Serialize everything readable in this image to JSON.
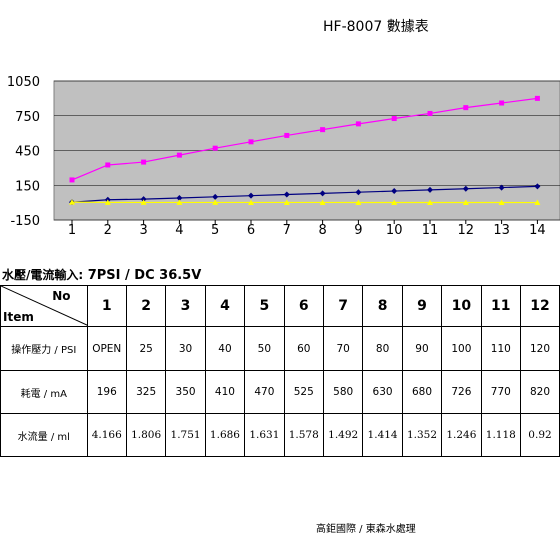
{
  "title": "HF-8007 數據表",
  "chart_data": {
    "type": "line",
    "categories": [
      "1",
      "2",
      "3",
      "4",
      "5",
      "6",
      "7",
      "8",
      "9",
      "10",
      "11",
      "12",
      "13",
      "14"
    ],
    "y_ticks": [
      "1050",
      "750",
      "450",
      "150",
      "-150"
    ],
    "ylim": [
      -150,
      1050
    ],
    "series": [
      {
        "color": "#ff00ff",
        "marker": "square",
        "values": [
          196,
          325,
          350,
          410,
          470,
          525,
          580,
          630,
          680,
          726,
          770,
          820,
          860,
          900
        ]
      },
      {
        "color": "#000080",
        "marker": "diamond",
        "values": [
          4,
          25,
          30,
          40,
          50,
          60,
          70,
          80,
          90,
          100,
          110,
          120,
          130,
          140
        ]
      },
      {
        "color": "#ffff00",
        "marker": "triangle",
        "values": [
          4.166,
          1.806,
          1.751,
          1.686,
          1.631,
          1.578,
          1.492,
          1.414,
          1.352,
          1.246,
          1.118,
          0.92,
          0.8,
          0.7
        ]
      }
    ],
    "plot_background": "#c0c0c0",
    "grid": true,
    "legend": "none"
  },
  "condition": {
    "label": "水壓/電流輸入:",
    "value": "7PSI / DC 36.5V"
  },
  "table": {
    "corner_no": "No",
    "corner_item": "Item",
    "columns": [
      "1",
      "2",
      "3",
      "4",
      "5",
      "6",
      "7",
      "8",
      "9",
      "10",
      "11",
      "12"
    ],
    "rows": [
      {
        "label": "操作壓力 / PSI",
        "cls": "r1",
        "cells": [
          "OPEN",
          "25",
          "30",
          "40",
          "50",
          "60",
          "70",
          "80",
          "90",
          "100",
          "110",
          "120"
        ]
      },
      {
        "label": "耗電  / mA",
        "cls": "r2",
        "cells": [
          "196",
          "325",
          "350",
          "410",
          "470",
          "525",
          "580",
          "630",
          "680",
          "726",
          "770",
          "820"
        ]
      },
      {
        "label": "水流量 / ml",
        "cls": "r3",
        "cells": [
          "4.166",
          "1.806",
          "1.751",
          "1.686",
          "1.631",
          "1.578",
          "1.492",
          "1.414",
          "1.352",
          "1.246",
          "1.118",
          "0.92"
        ]
      }
    ]
  },
  "footer": "高鉅國際  /  東森水處理"
}
